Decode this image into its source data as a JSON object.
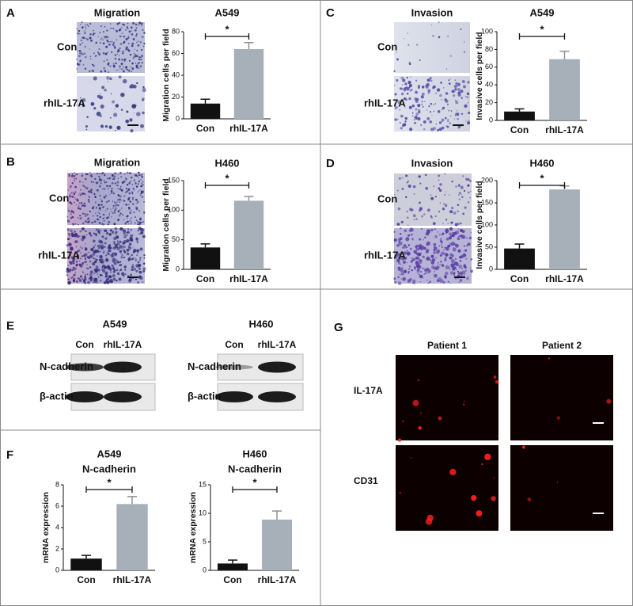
{
  "chart_data": [
    {
      "type": "bar",
      "title": "A549",
      "ylabel": "Migration cells per field",
      "categories": [
        "Con",
        "rhIL-17A"
      ],
      "values": [
        14,
        64
      ],
      "errors": [
        4,
        6
      ],
      "colors": [
        "#111111",
        "#a7afb9"
      ],
      "ylim": [
        0,
        80
      ],
      "yticks": [
        0,
        20,
        40,
        60,
        80
      ],
      "annotation": "*"
    },
    {
      "type": "bar",
      "title": "A549",
      "ylabel": "Invasive cells per field",
      "categories": [
        "Con",
        "rhIL-17A"
      ],
      "values": [
        10,
        69
      ],
      "errors": [
        3,
        9
      ],
      "colors": [
        "#111111",
        "#a7afb9"
      ],
      "ylim": [
        0,
        100
      ],
      "yticks": [
        0,
        20,
        40,
        60,
        80,
        100
      ],
      "annotation": "*"
    },
    {
      "type": "bar",
      "title": "H460",
      "ylabel": "Migration cells per field",
      "categories": [
        "Con",
        "rhIL-17A"
      ],
      "values": [
        37,
        116
      ],
      "errors": [
        6,
        7
      ],
      "colors": [
        "#111111",
        "#a7afb9"
      ],
      "ylim": [
        0,
        150
      ],
      "yticks": [
        0,
        50,
        100,
        150
      ],
      "annotation": "*"
    },
    {
      "type": "bar",
      "title": "H460",
      "ylabel": "Invasive cells per field",
      "categories": [
        "Con",
        "rhIL-17A"
      ],
      "values": [
        47,
        180
      ],
      "errors": [
        10,
        8
      ],
      "colors": [
        "#111111",
        "#a7afb9"
      ],
      "ylim": [
        0,
        200
      ],
      "yticks": [
        0,
        50,
        100,
        150,
        200
      ],
      "annotation": "*"
    },
    {
      "type": "bar",
      "title": "A549",
      "subtitle": "N-cadherin",
      "ylabel": "mRNA expression",
      "categories": [
        "Con",
        "rhIL-17A"
      ],
      "values": [
        1.1,
        6.2
      ],
      "errors": [
        0.3,
        0.7
      ],
      "colors": [
        "#111111",
        "#a7afb9"
      ],
      "ylim": [
        0,
        8
      ],
      "yticks": [
        0,
        2,
        4,
        6,
        8
      ],
      "annotation": "*"
    },
    {
      "type": "bar",
      "title": "H460",
      "subtitle": "N-cadherin",
      "ylabel": "mRNA expression",
      "categories": [
        "Con",
        "rhIL-17A"
      ],
      "values": [
        1.2,
        8.9
      ],
      "errors": [
        0.6,
        1.5
      ],
      "colors": [
        "#111111",
        "#a7afb9"
      ],
      "ylim": [
        0,
        15
      ],
      "yticks": [
        0,
        5,
        10,
        15
      ],
      "annotation": "*"
    }
  ],
  "panels": [
    {
      "letter": "A",
      "image_title": "Migration",
      "rows": [
        "Con",
        "rhIL-17A"
      ]
    },
    {
      "letter": "C",
      "image_title": "Invasion",
      "rows": [
        "Con",
        "rhIL-17A"
      ]
    },
    {
      "letter": "B",
      "image_title": "Migration",
      "rows": [
        "Con",
        "rhIL-17A"
      ]
    },
    {
      "letter": "D",
      "image_title": "Invasion",
      "rows": [
        "Con",
        "rhIL-17A"
      ]
    },
    {
      "letter": "E",
      "blots": [
        {
          "title": "A549",
          "lanes": [
            "Con",
            "rhIL-17A"
          ],
          "rows": [
            "N-cadherin",
            "β-actin"
          ]
        },
        {
          "title": "H460",
          "lanes": [
            "Con",
            "rhIL-17A"
          ],
          "rows": [
            "N-cadherin",
            "β-actin"
          ]
        }
      ]
    },
    {
      "letter": "F"
    },
    {
      "letter": "G",
      "columns": [
        "Patient 1",
        "Patient 2"
      ],
      "rows": [
        "IL-17A",
        "CD31"
      ]
    }
  ]
}
